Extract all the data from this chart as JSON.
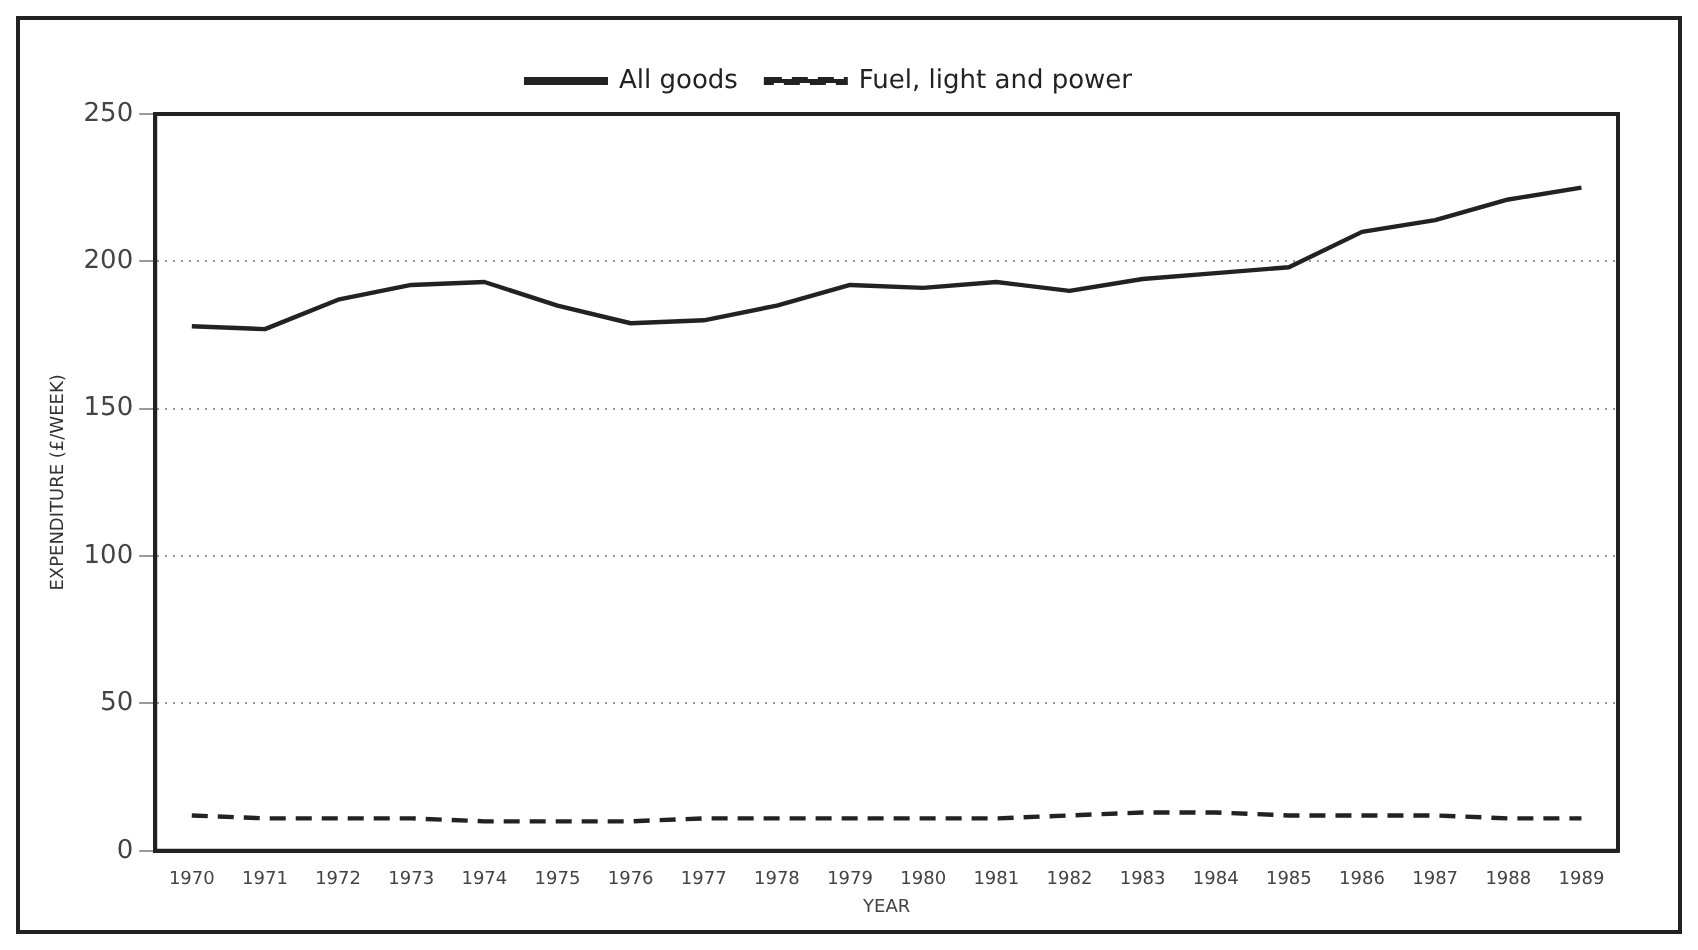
{
  "chart_data": {
    "type": "line",
    "xlabel": "YEAR",
    "ylabel": "EXPENDITURE (£/WEEK)",
    "categories": [
      "1970",
      "1971",
      "1972",
      "1973",
      "1974",
      "1975",
      "1976",
      "1977",
      "1978",
      "1979",
      "1980",
      "1981",
      "1982",
      "1983",
      "1984",
      "1985",
      "1986",
      "1987",
      "1988",
      "1989"
    ],
    "series": [
      {
        "name": "All goods",
        "color": "#222222",
        "line_style": "solid",
        "values": [
          178,
          177,
          187,
          192,
          193,
          185,
          179,
          180,
          185,
          192,
          191,
          193,
          190,
          194,
          196,
          198,
          210,
          214,
          221,
          225
        ]
      },
      {
        "name": "Fuel, light and power",
        "color": "#222222",
        "line_style": "dashed",
        "values": [
          12,
          11,
          11,
          11,
          10,
          10,
          10,
          11,
          11,
          11,
          11,
          11,
          12,
          13,
          13,
          12,
          12,
          12,
          11,
          11
        ]
      }
    ],
    "ylim": [
      0,
      250
    ],
    "yticks": [
      0,
      50,
      100,
      150,
      200,
      250
    ],
    "grid": "y",
    "legend": "top",
    "marker": "none"
  }
}
